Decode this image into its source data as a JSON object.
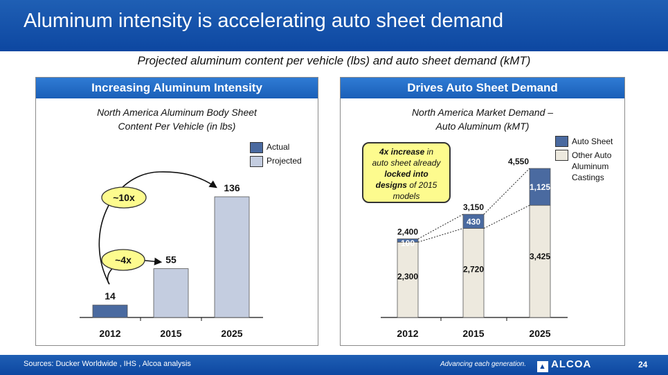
{
  "slide": {
    "title": "Aluminum intensity is accelerating auto sheet demand",
    "subtitle": "Projected aluminum content per vehicle (lbs) and auto sheet demand (kMT)",
    "page_number": "24"
  },
  "footer": {
    "source": "Sources: Ducker Worldwide , IHS , Alcoa analysis",
    "tagline": "Advancing each generation.",
    "logo_text": "ALCOA"
  },
  "colors": {
    "actual": "#4a6aa0",
    "projected": "#c4cde0",
    "other_castings": "#ede9de",
    "callout": "#fdfb8e",
    "brand_blue": "#0d47a1"
  },
  "chart_data": [
    {
      "type": "bar",
      "panel_title": "Increasing Aluminum Intensity",
      "title_line1": "North America Aluminum Body Sheet",
      "title_line2": "Content Per Vehicle (in lbs)",
      "categories": [
        "2012",
        "2015",
        "2025"
      ],
      "values": [
        14,
        55,
        136
      ],
      "value_labels": [
        "14",
        "55",
        "136"
      ],
      "bar_status": [
        "actual",
        "projected",
        "projected"
      ],
      "legend": [
        "Actual",
        "Projected"
      ],
      "annotations": [
        "~10x",
        "~4x"
      ],
      "ylim": [
        0,
        160
      ]
    },
    {
      "type": "bar",
      "stacked": true,
      "panel_title": "Drives Auto Sheet Demand",
      "title_line1": "North America Market Demand –",
      "title_line2": "Auto Aluminum (kMT)",
      "categories": [
        "2012",
        "2015",
        "2025"
      ],
      "series": [
        {
          "name": "Other Auto Aluminum Castings",
          "values": [
            2300,
            2720,
            3425
          ],
          "labels": [
            "2,300",
            "2,720",
            "3,425"
          ]
        },
        {
          "name": "Auto Sheet",
          "values": [
            100,
            430,
            1125
          ],
          "labels": [
            "100",
            "430",
            "1,125"
          ]
        }
      ],
      "totals": [
        2400,
        3150,
        4550
      ],
      "total_labels": [
        "2,400",
        "3,150",
        "4,550"
      ],
      "legend": [
        "Auto Sheet",
        "Other Auto",
        "Aluminum",
        "Castings"
      ],
      "callout": {
        "part1": "4x increase",
        "part2": " in",
        "part3": "auto sheet already",
        "part4": "locked into",
        "part5": "designs",
        "part6": " of 2015",
        "part7": "models"
      },
      "ylim": [
        0,
        5600
      ]
    }
  ]
}
